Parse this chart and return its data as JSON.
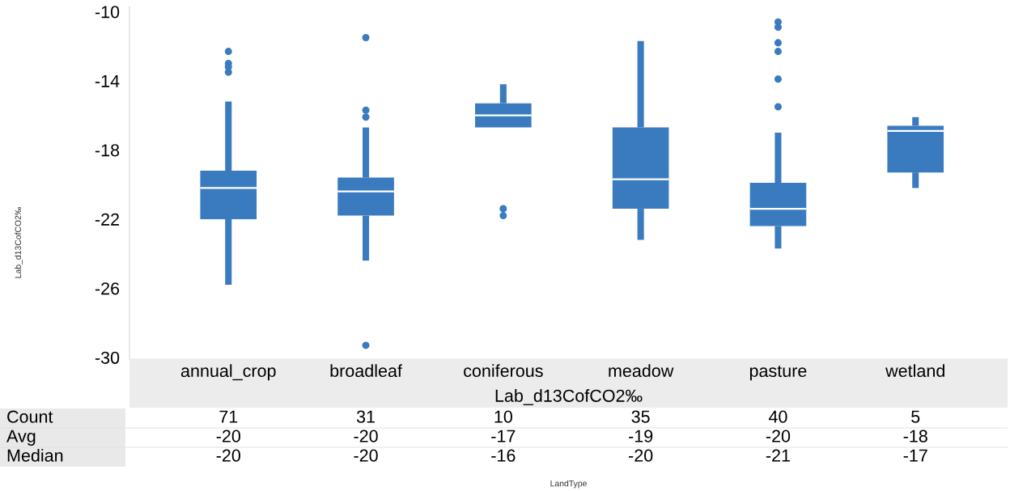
{
  "chart_data": [
    {
      "type": "box",
      "ylabel": "Lab_d13CofCO2‰",
      "categories": [
        "annual_crop",
        "broadleaf",
        "coniferous",
        "meadow",
        "pasture",
        "wetland"
      ],
      "color": "#3a7bbf",
      "marker": "circle",
      "boxes": [
        {
          "low": -25.8,
          "q1": -22.0,
          "median": -20.2,
          "q3": -19.2,
          "high": -15.2,
          "outliers": [
            -12.3,
            -13.0,
            -13.2,
            -13.5
          ]
        },
        {
          "low": -24.4,
          "q1": -21.8,
          "median": -20.4,
          "q3": -19.6,
          "high": -16.7,
          "outliers": [
            -11.5,
            -15.7,
            -16.1,
            -29.3
          ]
        },
        {
          "low": -16.7,
          "q1": -16.7,
          "median": -16.0,
          "q3": -15.3,
          "high": -14.2,
          "outliers": [
            -21.4,
            -21.8
          ]
        },
        {
          "low": -23.2,
          "q1": -21.4,
          "median": -19.7,
          "q3": -16.7,
          "high": -11.7
        },
        {
          "low": -23.7,
          "q1": -22.4,
          "median": -21.4,
          "q3": -19.9,
          "high": -17.0,
          "outliers": [
            -10.6,
            -10.9,
            -11.8,
            -12.3,
            -13.9,
            -15.5
          ]
        },
        {
          "low": -20.2,
          "q1": -19.3,
          "median": -16.9,
          "q3": -16.6,
          "high": -16.1
        }
      ],
      "ylim": [
        -30.1,
        -9.7
      ],
      "yticks": [
        -30,
        -26,
        -22,
        -18,
        -14,
        -10
      ]
    },
    {
      "type": "other",
      "title": "Lab_d13CofCO2‰",
      "xlabel": "LandType",
      "y_categories": [
        "Count",
        "Avg",
        "Median"
      ],
      "cell_labels": [
        [
          "71",
          "31",
          "10",
          "35",
          "40",
          "5"
        ],
        [
          "-20",
          "-20",
          "-17",
          "-19",
          "-20",
          "-18"
        ],
        [
          "-20",
          "-20",
          "-16",
          "-20",
          "-21",
          "-17"
        ]
      ]
    }
  ]
}
